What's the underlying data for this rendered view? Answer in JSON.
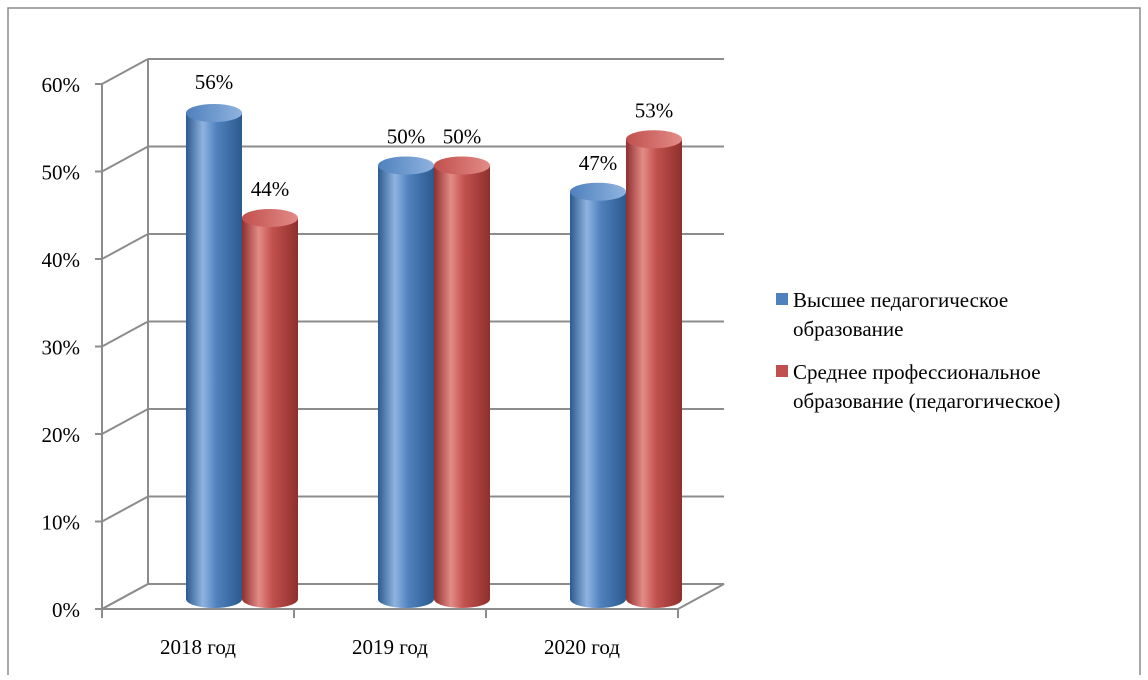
{
  "chart_data": {
    "type": "bar",
    "categories": [
      "2018 год",
      "2019 год",
      "2020 год"
    ],
    "series": [
      {
        "name": "Высшее педагогическое образование",
        "legend_lines": [
          "Высшее педагогическое",
          "образование"
        ],
        "color": "#4F81BD",
        "values": [
          56,
          50,
          47
        ],
        "labels": [
          "56%",
          "50%",
          "47%"
        ]
      },
      {
        "name": "Среднее профессиональное образование (педагогическое)",
        "legend_lines": [
          "Среднее профессиональное",
          "образование (педагогическое)"
        ],
        "color": "#C0504D",
        "values": [
          44,
          50,
          53
        ],
        "labels": [
          "44%",
          "50%",
          "53%"
        ]
      }
    ],
    "yticks": [
      "0%",
      "10%",
      "20%",
      "30%",
      "40%",
      "50%",
      "60%"
    ],
    "ylim": [
      0,
      60
    ],
    "grid": true,
    "legend": "right",
    "three_d": true
  }
}
